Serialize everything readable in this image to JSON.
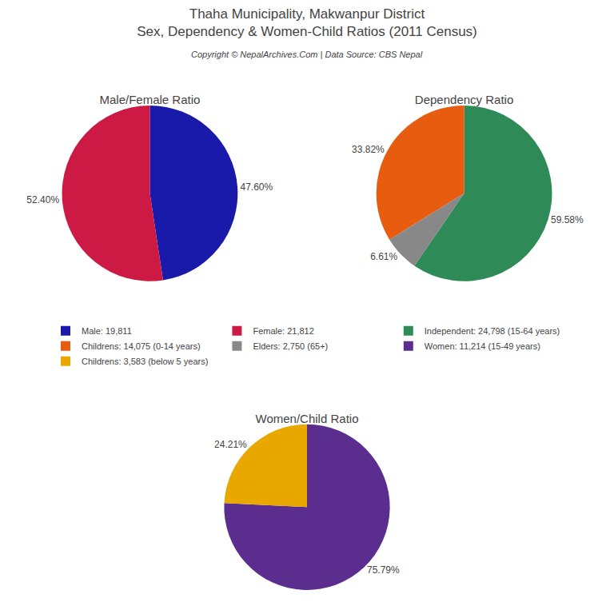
{
  "title": "Thaha Municipality, Makwanpur District",
  "subtitle": "Sex, Dependency & Women-Child Ratios (2011 Census)",
  "annotations": [
    "Copyright © NepalArchives.Com | Data Source: CBS Nepal"
  ],
  "chart_data": [
    {
      "type": "pie",
      "title": "Male/Female Ratio",
      "categories": [
        "Male: 19,811",
        "Female: 21,812"
      ],
      "values": [
        47.6,
        52.4
      ],
      "value_labels": [
        "47.60%",
        "52.40%"
      ],
      "colors": [
        "#1a1aaa",
        "#cc1a44"
      ],
      "data_labels": true,
      "legend": "center"
    },
    {
      "type": "pie",
      "title": "Dependency Ratio",
      "categories": [
        "Independent: 24,798 (15-64 years)",
        "Childrens: 14,075 (0-14 years)",
        "Elders: 2,750 (65+)"
      ],
      "values": [
        59.58,
        33.82,
        6.61
      ],
      "value_labels": [
        "59.58%",
        "33.82%",
        "6.61%"
      ],
      "colors": [
        "#2e8b57",
        "#e85c10",
        "#888888"
      ],
      "data_labels": true,
      "legend": "center"
    },
    {
      "type": "pie",
      "title": "Women/Child Ratio",
      "categories": [
        "Women: 11,214 (15-49 years)",
        "Childrens: 3,583 (below 5 years)"
      ],
      "values": [
        75.79,
        24.21
      ],
      "value_labels": [
        "75.79%",
        "24.21%"
      ],
      "colors": [
        "#5b2d8e",
        "#e8a800"
      ],
      "data_labels": true,
      "legend": "center"
    }
  ]
}
